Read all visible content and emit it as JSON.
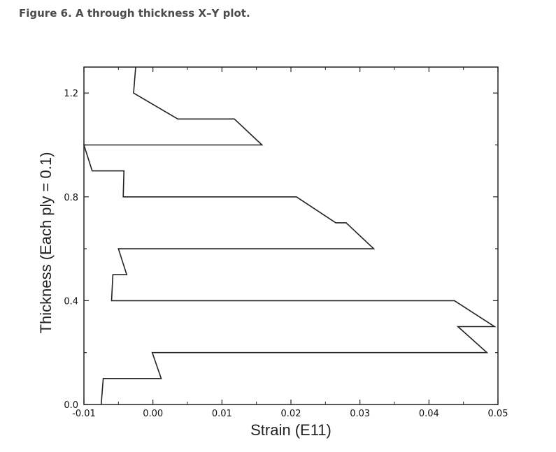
{
  "figure": {
    "caption": "Figure 6. A through thickness X–Y plot."
  },
  "chart_data": {
    "type": "line",
    "title": "",
    "xlabel": "Strain (E11)",
    "ylabel": "Thickness (Each ply = 0.1)",
    "xlim": [
      -0.01,
      0.05
    ],
    "ylim": [
      0.0,
      1.3
    ],
    "xticks": [
      -0.01,
      0.0,
      0.01,
      0.02,
      0.03,
      0.04,
      0.05
    ],
    "xtick_labels": [
      "-0.01",
      "0.00",
      "0.01",
      "0.02",
      "0.03",
      "0.04",
      "0.05"
    ],
    "yticks": [
      0.0,
      0.4,
      0.8,
      1.2
    ],
    "ytick_labels": [
      "0.0",
      "0.4",
      "0.8",
      "1.2"
    ],
    "grid": false,
    "line_color": "#222222",
    "series": [
      {
        "x": [
          -0.0075,
          -0.0072,
          0.0012,
          -0.0001,
          0.0484,
          0.0442,
          0.0495,
          0.0437,
          -0.006,
          -0.0058,
          -0.0038,
          -0.005,
          0.032,
          0.028,
          0.0265,
          0.0208,
          -0.0043,
          -0.0042,
          -0.0088,
          -0.01,
          0.0158,
          0.0118,
          0.0036,
          -0.0028,
          -0.0025
        ],
        "y": [
          0.0,
          0.1,
          0.1,
          0.2,
          0.2,
          0.3,
          0.3,
          0.4,
          0.4,
          0.5,
          0.5,
          0.6,
          0.6,
          0.7,
          0.7,
          0.8,
          0.8,
          0.9,
          0.9,
          1.0,
          1.0,
          1.1,
          1.1,
          1.2,
          1.3
        ]
      }
    ]
  }
}
